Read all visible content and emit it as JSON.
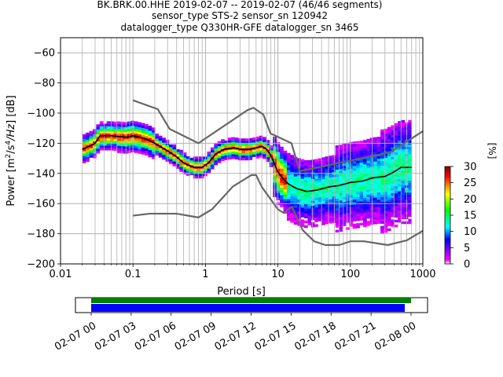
{
  "title": {
    "line1": "BK.BRK.00.HHE   2019-02-07 -- 2019-02-07  (46/46 segments)",
    "line2": "sensor_type STS-2 sensor_sn 120942",
    "line3": "datalogger_type Q330HR-GFE datalogger_sn 3465"
  },
  "chart_data": {
    "type": "heatmap",
    "xlabel": "Period [s]",
    "ylabel": "Power [m^2/s^4/Hz] [dB]",
    "x_scale": "log",
    "xlim": [
      0.01,
      1000
    ],
    "ylim": [
      -200,
      -50
    ],
    "x_ticks": [
      "0.01",
      "0.1",
      "1",
      "10",
      "100",
      "1000"
    ],
    "y_ticks": [
      "−200",
      "−180",
      "−160",
      "−140",
      "−120",
      "−100",
      "−80",
      "−60"
    ],
    "grid": true,
    "colorbar": {
      "label": "[%]",
      "range": [
        0,
        30
      ],
      "ticks": [
        "0",
        "5",
        "10",
        "15",
        "20",
        "25",
        "30"
      ]
    },
    "noise_model_upper": {
      "periods": [
        0.1,
        0.22,
        0.32,
        0.8,
        3.8,
        4.6,
        6.3,
        7.9,
        15.4,
        20,
        354.8,
        1000
      ],
      "db": [
        -91.5,
        -97.4,
        -110.5,
        -120,
        -98,
        -96.5,
        -101,
        -113.5,
        -120,
        -138.5,
        -126,
        -112
      ]
    },
    "noise_model_lower": {
      "periods": [
        0.1,
        0.17,
        0.4,
        0.8,
        1.24,
        2.4,
        4.3,
        5,
        6,
        10,
        12,
        15.6,
        21.9,
        31.6,
        45,
        70,
        101,
        154,
        328,
        600,
        1000
      ],
      "db": [
        -168,
        -166.7,
        -166.7,
        -169.2,
        -163.7,
        -148.6,
        -141.1,
        -141.1,
        -149,
        -163.8,
        -166.2,
        -162.1,
        -177.5,
        -185,
        -187.5,
        -187.5,
        -185,
        -185,
        -187.5,
        -184.4,
        -178
      ]
    },
    "mode_curve": {
      "periods": [
        0.02,
        0.025,
        0.03,
        0.035,
        0.05,
        0.08,
        0.1,
        0.15,
        0.2,
        0.3,
        0.4,
        0.5,
        0.7,
        0.9,
        1.1,
        1.4,
        1.8,
        2.5,
        3,
        4,
        5,
        6,
        7,
        8,
        10,
        12,
        14,
        18,
        25,
        35,
        50,
        70,
        100,
        150,
        200,
        300,
        400,
        500,
        700
      ],
      "db": [
        -124,
        -122,
        -120,
        -115,
        -115,
        -116,
        -115,
        -117,
        -120,
        -125,
        -129,
        -133,
        -136,
        -136,
        -133,
        -127,
        -124,
        -123,
        -124,
        -124,
        -123,
        -122,
        -124,
        -128,
        -139,
        -144,
        -147,
        -150,
        -152,
        -151,
        -149,
        -148,
        -146,
        -145,
        -143,
        -142,
        -139,
        -136,
        -136
      ]
    },
    "colorbar_anchor_colors": [
      "#ffffff",
      "#ff00ff",
      "#0000ff",
      "#00ffff",
      "#00ff00",
      "#ffff00",
      "#ff0000",
      "#800000"
    ]
  },
  "time_axis": {
    "labels": [
      "02-07 00",
      "02-07 03",
      "02-07 06",
      "02-07 09",
      "02-07 12",
      "02-07 15",
      "02-07 18",
      "02-07 21",
      "02-08 00"
    ],
    "coverage_color": "#008000",
    "segments_color": "#0000ff"
  }
}
